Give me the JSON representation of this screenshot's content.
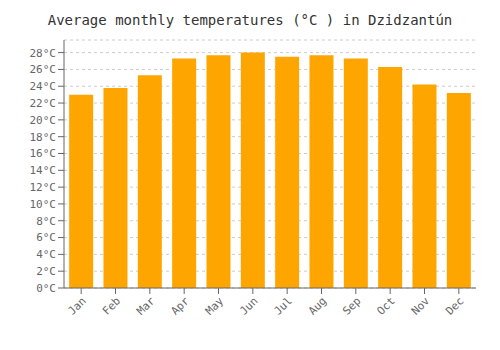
{
  "chart_data": {
    "type": "bar",
    "title": "Average monthly temperatures (°C ) in Dzidzantún",
    "categories": [
      "Jan",
      "Feb",
      "Mar",
      "Apr",
      "May",
      "Jun",
      "Jul",
      "Aug",
      "Sep",
      "Oct",
      "Nov",
      "Dec"
    ],
    "values": [
      23.0,
      23.8,
      25.3,
      27.3,
      27.7,
      28.0,
      27.5,
      27.7,
      27.3,
      26.3,
      24.2,
      23.2
    ],
    "color": "#FFA500",
    "ylim": [
      0,
      29.5
    ],
    "yticks": [
      {
        "value": 0,
        "label": "0°C"
      },
      {
        "value": 2,
        "label": "2°C"
      },
      {
        "value": 4,
        "label": "4°C"
      },
      {
        "value": 6,
        "label": "6°C"
      },
      {
        "value": 8,
        "label": "8°C"
      },
      {
        "value": 10,
        "label": "10°C"
      },
      {
        "value": 12,
        "label": "12°C"
      },
      {
        "value": 14,
        "label": "14°C"
      },
      {
        "value": 16,
        "label": "16°C"
      },
      {
        "value": 18,
        "label": "18°C"
      },
      {
        "value": 20,
        "label": "20°C"
      },
      {
        "value": 22,
        "label": "22°C"
      },
      {
        "value": 24,
        "label": "24°C"
      },
      {
        "value": 26,
        "label": "26°C"
      },
      {
        "value": 28,
        "label": "28°C"
      }
    ],
    "grid": true
  }
}
